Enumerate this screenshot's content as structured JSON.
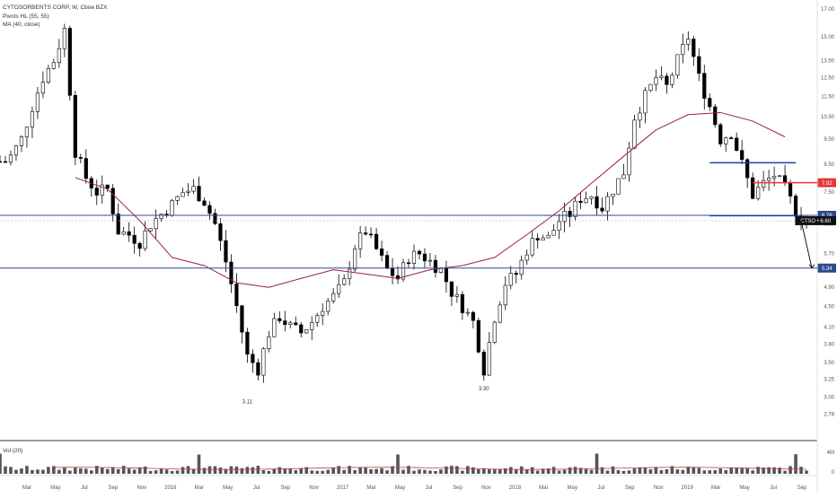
{
  "legend": {
    "symbol": "CYTOSORBENTS CORP, W, Cboe BZX",
    "pivots": "Pivots HL (55, 55)",
    "ma": "MA (40, close)",
    "volume": "Vol (20)"
  },
  "colors": {
    "up": "#ffffff",
    "down": "#000000",
    "ma_line": "#9b2335",
    "support": "#2a4a8c",
    "resistance_red": "#e53935",
    "channel": "#1e3fa8",
    "volume_bar": "#555555",
    "volume_ma": "#c2403f"
  },
  "chart_data": {
    "type": "candlestick",
    "title": "CYTOSORBENTS CORP, W, Cboe BZX",
    "ylim": [
      2.5,
      17.0
    ],
    "y_scale": "log",
    "y_ticks": [
      "17.00",
      "15.00",
      "13.50",
      "12.50",
      "11.50",
      "10.50",
      "9.50",
      "8.50",
      "7.50",
      "6.50",
      "5.70",
      "4.90",
      "4.50",
      "4.10",
      "3.80",
      "3.50",
      "3.25",
      "3.00",
      "2.78"
    ],
    "x_ticks": [
      "Mar",
      "May",
      "Jul",
      "Sep",
      "Nov",
      "2016",
      "Mar",
      "May",
      "Jul",
      "Sep",
      "Nov",
      "2017",
      "Mar",
      "May",
      "Jul",
      "Sep",
      "Nov",
      "2018",
      "Mar",
      "May",
      "Jul",
      "Sep",
      "Nov",
      "2019",
      "Mar",
      "May",
      "Jul",
      "Sep"
    ],
    "series": [
      {
        "name": "CTSO",
        "points": [
          [
            1,
            8.6
          ],
          [
            2,
            8.8
          ],
          [
            4,
            9.5
          ],
          [
            6,
            11
          ],
          [
            8,
            12.5
          ],
          [
            10,
            13.5
          ],
          [
            12,
            15.5
          ],
          [
            14,
            9
          ],
          [
            16,
            8
          ],
          [
            18,
            7.5
          ],
          [
            20,
            7.6
          ],
          [
            22,
            6.3
          ],
          [
            24,
            6.2
          ],
          [
            26,
            6.0
          ],
          [
            28,
            6.5
          ],
          [
            30,
            6.8
          ],
          [
            32,
            7.1
          ],
          [
            34,
            7.5
          ],
          [
            36,
            7.6
          ],
          [
            38,
            7.2
          ],
          [
            40,
            6.5
          ],
          [
            42,
            5.5
          ],
          [
            44,
            4.5
          ],
          [
            46,
            3.6
          ],
          [
            48,
            3.4
          ],
          [
            50,
            4.0
          ],
          [
            52,
            4.3
          ],
          [
            54,
            4.1
          ],
          [
            56,
            4.0
          ],
          [
            58,
            4.2
          ],
          [
            60,
            4.5
          ],
          [
            62,
            4.7
          ],
          [
            64,
            5.0
          ],
          [
            66,
            5.9
          ],
          [
            68,
            6.3
          ],
          [
            70,
            5.8
          ],
          [
            72,
            5.3
          ],
          [
            74,
            5.1
          ],
          [
            76,
            5.6
          ],
          [
            78,
            5.7
          ],
          [
            80,
            5.5
          ],
          [
            82,
            5.3
          ],
          [
            84,
            4.8
          ],
          [
            86,
            4.5
          ],
          [
            88,
            4.2
          ],
          [
            90,
            3.4
          ],
          [
            92,
            4.3
          ],
          [
            94,
            5.0
          ],
          [
            96,
            5.2
          ],
          [
            98,
            5.8
          ],
          [
            100,
            6.2
          ],
          [
            102,
            6.1
          ],
          [
            104,
            6.6
          ],
          [
            106,
            6.8
          ],
          [
            108,
            7.3
          ],
          [
            110,
            7.4
          ],
          [
            112,
            7.0
          ],
          [
            114,
            7.6
          ],
          [
            116,
            8.2
          ],
          [
            118,
            10.5
          ],
          [
            120,
            11.5
          ],
          [
            122,
            12.5
          ],
          [
            124,
            12.0
          ],
          [
            126,
            13.5
          ],
          [
            128,
            15.0
          ],
          [
            130,
            12.5
          ],
          [
            132,
            11.0
          ],
          [
            134,
            9.5
          ],
          [
            136,
            9.8
          ],
          [
            138,
            8.5
          ],
          [
            140,
            7.4
          ],
          [
            142,
            7.8
          ],
          [
            144,
            8.1
          ],
          [
            146,
            7.6
          ],
          [
            148,
            6.9
          ],
          [
            150,
            6.6
          ]
        ]
      },
      {
        "name": "MA (40, close)",
        "points": [
          [
            14,
            8.0
          ],
          [
            20,
            7.6
          ],
          [
            26,
            6.6
          ],
          [
            32,
            5.6
          ],
          [
            38,
            5.4
          ],
          [
            44,
            5.0
          ],
          [
            50,
            4.9
          ],
          [
            56,
            5.1
          ],
          [
            62,
            5.3
          ],
          [
            68,
            5.2
          ],
          [
            74,
            5.1
          ],
          [
            80,
            5.3
          ],
          [
            86,
            5.4
          ],
          [
            92,
            5.6
          ],
          [
            98,
            6.2
          ],
          [
            104,
            6.9
          ],
          [
            110,
            7.8
          ],
          [
            116,
            8.8
          ],
          [
            122,
            9.9
          ],
          [
            128,
            10.6
          ],
          [
            134,
            10.7
          ],
          [
            140,
            10.3
          ],
          [
            146,
            9.6
          ]
        ]
      }
    ],
    "annotations": [
      {
        "text": "3.11",
        "x": 46,
        "y": 3.11
      },
      {
        "text": "3.30",
        "x": 90,
        "y": 3.3
      }
    ],
    "levels": [
      {
        "label": "6.76",
        "value": 6.76,
        "style": "support"
      },
      {
        "label": "5.34",
        "value": 5.34,
        "style": "support"
      },
      {
        "label": "7.82",
        "value": 7.82,
        "style": "resistance_red"
      },
      {
        "label": "CTSO • 6.60",
        "value": 6.6,
        "style": "last_price"
      }
    ],
    "channel": {
      "upper": 8.55,
      "lower": 6.75,
      "x_start": 132,
      "x_end": 148
    },
    "projection": {
      "from": [
        149,
        6.6
      ],
      "to": [
        151,
        5.34
      ]
    },
    "volume_axis_labels": [
      "4M",
      "0"
    ]
  }
}
